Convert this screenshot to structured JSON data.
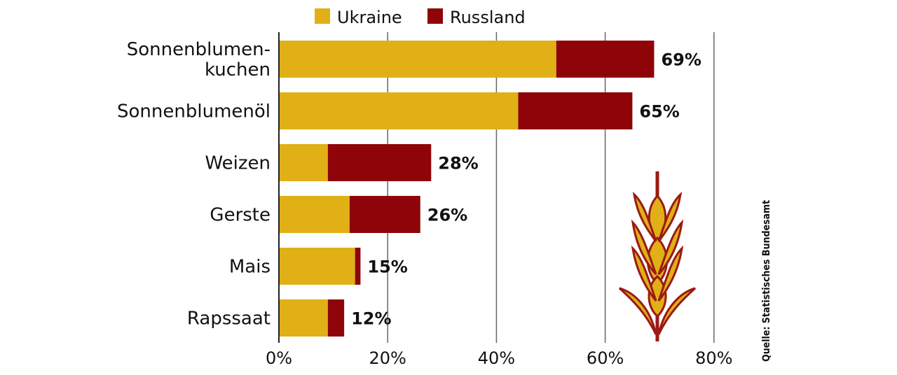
{
  "chart_data": {
    "type": "bar",
    "orientation": "horizontal",
    "stacked": true,
    "categories": [
      "Sonnenblumen-\nkuchen",
      "Sonnenblumenöl",
      "Weizen",
      "Gerste",
      "Mais",
      "Rapssaat"
    ],
    "series": [
      {
        "name": "Ukraine",
        "color": "#e0b016",
        "values": [
          51,
          44,
          9,
          13,
          14,
          9
        ]
      },
      {
        "name": "Russland",
        "color": "#8e0409",
        "values": [
          18,
          21,
          19,
          13,
          1,
          3
        ]
      }
    ],
    "totals": [
      "69%",
      "65%",
      "28%",
      "26%",
      "15%",
      "12%"
    ],
    "xlim": [
      0,
      80
    ],
    "xticks": [
      "0%",
      "20%",
      "40%",
      "60%",
      "80%"
    ],
    "grid": true,
    "legend_position": "top",
    "source": "Quelle: Statistisches Bundesamt",
    "decoration_icon": "wheat-ear-icon"
  }
}
